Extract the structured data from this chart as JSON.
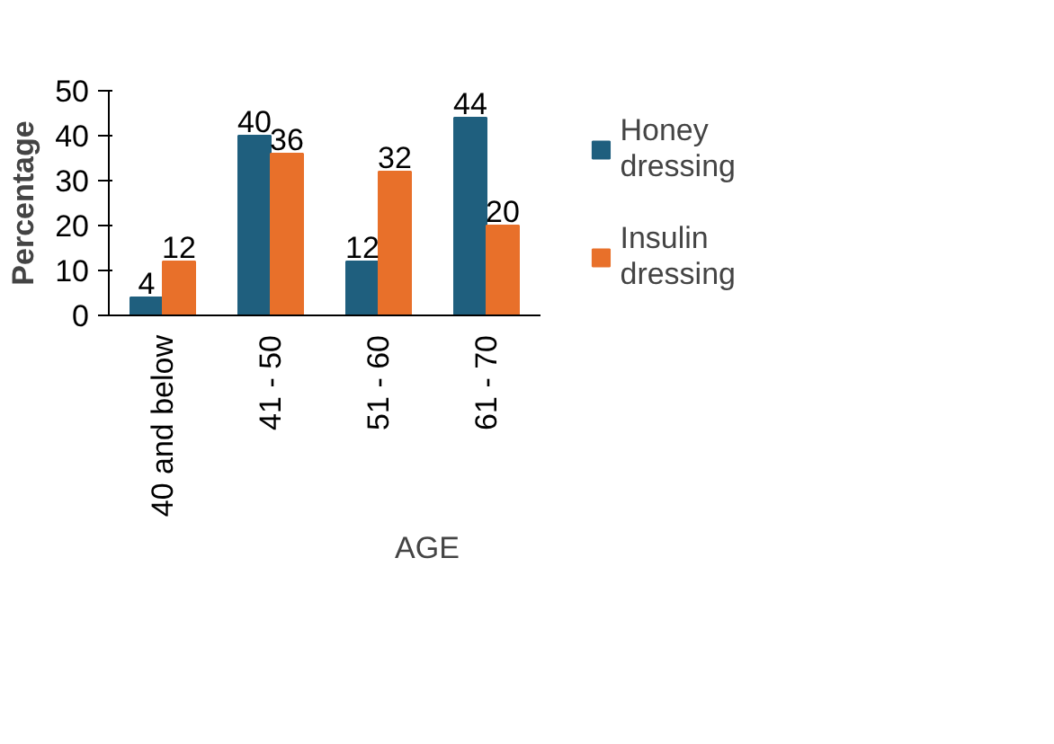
{
  "chart_data": {
    "type": "bar",
    "ylabel": "Percentage",
    "xlabel": "AGE",
    "categories": [
      "40 and below",
      "41 - 50",
      "51 - 60",
      "61 - 70"
    ],
    "series": [
      {
        "name": "Honey dressing",
        "color": "#1f5f7e",
        "values": [
          4,
          40,
          12,
          44
        ]
      },
      {
        "name": "Insulin dressing",
        "color": "#e8702a",
        "values": [
          12,
          36,
          32,
          20
        ]
      }
    ],
    "ylim": [
      0,
      50
    ],
    "yticks": [
      0,
      10,
      20,
      30,
      40,
      50
    ],
    "grid": false,
    "legend": "right",
    "data_labels": true
  }
}
